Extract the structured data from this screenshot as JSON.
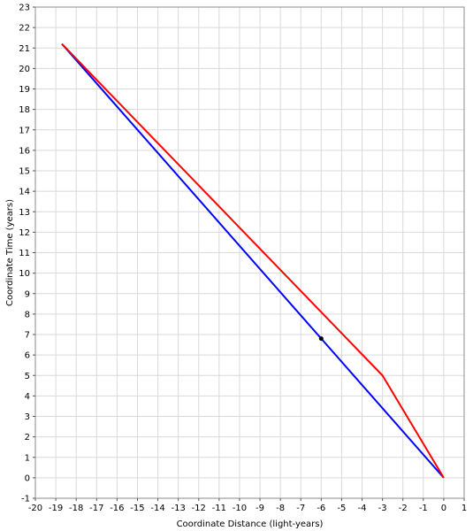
{
  "chart_data": {
    "type": "line",
    "title": "",
    "xlabel": "Coordinate Distance (light-years)",
    "ylabel": "Coordinate Time (years)",
    "xlim": [
      -20,
      1
    ],
    "ylim": [
      -1,
      23
    ],
    "x_ticks": [
      -20,
      -19,
      -18,
      -17,
      -16,
      -15,
      -14,
      -13,
      -12,
      -11,
      -10,
      -9,
      -8,
      -7,
      -6,
      -5,
      -4,
      -3,
      -2,
      -1,
      0,
      1
    ],
    "y_ticks": [
      -1,
      0,
      1,
      2,
      3,
      4,
      5,
      6,
      7,
      8,
      9,
      10,
      11,
      12,
      13,
      14,
      15,
      16,
      17,
      18,
      19,
      20,
      21,
      22,
      23
    ],
    "grid": true,
    "legend": "none",
    "series": [
      {
        "color": "#0000ff",
        "points": [
          [
            0,
            0
          ],
          [
            -18.7,
            21.2
          ]
        ]
      },
      {
        "color": "#ff0000",
        "points": [
          [
            0,
            0
          ],
          [
            -3,
            5
          ],
          [
            -18.7,
            21.2
          ]
        ]
      }
    ],
    "markers": [
      {
        "x": -6,
        "y": 6.8,
        "color": "#000000"
      }
    ]
  }
}
